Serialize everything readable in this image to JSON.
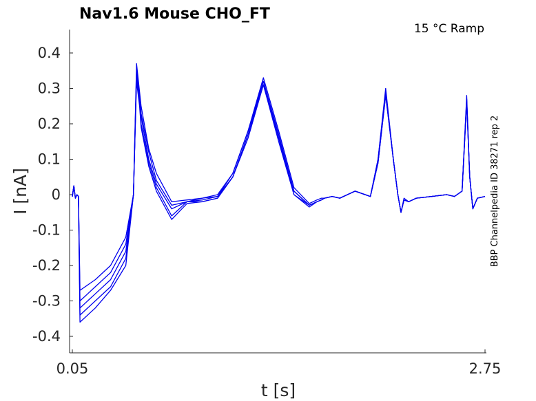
{
  "chart_data": {
    "type": "line",
    "title": "Nav1.6  Mouse  CHO_FT",
    "annotation": "15 °C  Ramp",
    "side_label": "BBP Channelpedia ID 38271 rep 2",
    "xlabel": "t [s]",
    "ylabel": "I [nA]",
    "xlim": [
      0.05,
      2.75
    ],
    "ylim": [
      -0.45,
      0.45
    ],
    "x_ticks": [
      "0.05",
      "2.75"
    ],
    "y_ticks": [
      "0.4",
      "0.3",
      "0.2",
      "0.1",
      "0",
      "-0.1",
      "-0.2",
      "-0.3",
      "-0.4"
    ],
    "y_tick_values": [
      0.4,
      0.3,
      0.2,
      0.1,
      0,
      -0.1,
      -0.2,
      -0.3,
      -0.4
    ],
    "grid": false,
    "line_color": "#0000ee",
    "series": [
      {
        "x": [
          0.05,
          0.06,
          0.07,
          0.08,
          0.09,
          0.1,
          0.2,
          0.3,
          0.4,
          0.45,
          0.47,
          0.49,
          0.5,
          0.55,
          0.6,
          0.7,
          0.8,
          0.9,
          1.0,
          1.1,
          1.2,
          1.3,
          1.4,
          1.5,
          1.6,
          1.65,
          1.68,
          1.7,
          1.75,
          1.8,
          1.9,
          2.0,
          2.05,
          2.1,
          2.15,
          2.18,
          2.2,
          2.22,
          2.25,
          2.3,
          2.4,
          2.5,
          2.55,
          2.6,
          2.63,
          2.65,
          2.67,
          2.7,
          2.75
        ],
        "y": [
          -0.005,
          0.025,
          -0.01,
          0.0,
          -0.005,
          -0.27,
          -0.24,
          -0.2,
          -0.12,
          0.0,
          0.37,
          0.29,
          0.25,
          0.13,
          0.06,
          -0.02,
          -0.015,
          -0.01,
          -0.0,
          0.06,
          0.18,
          0.33,
          0.18,
          0.02,
          -0.025,
          -0.015,
          -0.01,
          -0.01,
          -0.005,
          -0.01,
          0.01,
          -0.005,
          0.1,
          0.3,
          0.1,
          0.0,
          -0.05,
          -0.01,
          -0.02,
          -0.01,
          -0.005,
          0.0,
          -0.005,
          0.01,
          0.28,
          0.05,
          -0.04,
          -0.01,
          -0.005
        ]
      },
      {
        "x": [
          0.05,
          0.06,
          0.07,
          0.08,
          0.09,
          0.1,
          0.2,
          0.3,
          0.4,
          0.45,
          0.47,
          0.49,
          0.5,
          0.55,
          0.6,
          0.7,
          0.8,
          0.9,
          1.0,
          1.1,
          1.2,
          1.3,
          1.4,
          1.5,
          1.6,
          1.65,
          1.68,
          1.7,
          1.75,
          1.8,
          1.9,
          2.0,
          2.05,
          2.1,
          2.15,
          2.18,
          2.2,
          2.22,
          2.25,
          2.3,
          2.4,
          2.5,
          2.55,
          2.6,
          2.63,
          2.65,
          2.67,
          2.7,
          2.75
        ],
        "y": [
          -0.005,
          0.025,
          -0.01,
          0.0,
          -0.005,
          -0.3,
          -0.26,
          -0.22,
          -0.14,
          0.0,
          0.35,
          0.28,
          0.23,
          0.12,
          0.04,
          -0.03,
          -0.02,
          -0.01,
          -0.005,
          0.06,
          0.18,
          0.32,
          0.17,
          0.01,
          -0.03,
          -0.02,
          -0.015,
          -0.01,
          -0.005,
          -0.01,
          0.01,
          -0.005,
          0.1,
          0.29,
          0.1,
          0.0,
          -0.05,
          -0.015,
          -0.02,
          -0.01,
          -0.005,
          0.0,
          -0.005,
          0.01,
          0.27,
          0.05,
          -0.04,
          -0.01,
          -0.005
        ]
      },
      {
        "x": [
          0.05,
          0.06,
          0.07,
          0.08,
          0.09,
          0.1,
          0.2,
          0.3,
          0.4,
          0.45,
          0.47,
          0.49,
          0.5,
          0.55,
          0.6,
          0.7,
          0.8,
          0.9,
          1.0,
          1.1,
          1.2,
          1.3,
          1.4,
          1.5,
          1.6,
          1.65,
          1.68,
          1.7,
          1.75,
          1.8,
          1.9,
          2.0,
          2.05,
          2.1,
          2.15,
          2.18,
          2.2,
          2.22,
          2.25,
          2.3,
          2.4,
          2.5,
          2.55,
          2.6,
          2.63,
          2.65,
          2.67,
          2.7,
          2.75
        ],
        "y": [
          -0.005,
          0.025,
          -0.01,
          0.0,
          -0.005,
          -0.32,
          -0.28,
          -0.24,
          -0.16,
          0.0,
          0.34,
          0.27,
          0.22,
          0.1,
          0.03,
          -0.04,
          -0.02,
          -0.015,
          -0.005,
          0.05,
          0.17,
          0.32,
          0.16,
          0.01,
          -0.03,
          -0.02,
          -0.015,
          -0.01,
          -0.005,
          -0.01,
          0.01,
          -0.005,
          0.09,
          0.29,
          0.1,
          0.0,
          -0.05,
          -0.015,
          -0.02,
          -0.01,
          -0.005,
          0.0,
          -0.005,
          0.01,
          0.27,
          0.05,
          -0.04,
          -0.01,
          -0.005
        ]
      },
      {
        "x": [
          0.05,
          0.06,
          0.07,
          0.08,
          0.09,
          0.1,
          0.2,
          0.3,
          0.4,
          0.45,
          0.47,
          0.49,
          0.5,
          0.55,
          0.6,
          0.7,
          0.8,
          0.9,
          1.0,
          1.1,
          1.2,
          1.3,
          1.4,
          1.5,
          1.6,
          1.65,
          1.68,
          1.7,
          1.75,
          1.8,
          1.9,
          2.0,
          2.05,
          2.1,
          2.15,
          2.18,
          2.2,
          2.22,
          2.25,
          2.3,
          2.4,
          2.5,
          2.55,
          2.6,
          2.63,
          2.65,
          2.67,
          2.7,
          2.75
        ],
        "y": [
          -0.005,
          0.025,
          -0.01,
          0.0,
          -0.005,
          -0.34,
          -0.3,
          -0.26,
          -0.18,
          0.0,
          0.33,
          0.26,
          0.2,
          0.09,
          0.02,
          -0.06,
          -0.02,
          -0.02,
          -0.01,
          0.05,
          0.17,
          0.31,
          0.16,
          0.0,
          -0.03,
          -0.02,
          -0.015,
          -0.01,
          -0.005,
          -0.01,
          0.01,
          -0.005,
          0.09,
          0.28,
          0.1,
          0.0,
          -0.05,
          -0.015,
          -0.02,
          -0.01,
          -0.005,
          0.0,
          -0.005,
          0.01,
          0.26,
          0.05,
          -0.04,
          -0.01,
          -0.005
        ]
      },
      {
        "x": [
          0.05,
          0.06,
          0.07,
          0.08,
          0.09,
          0.1,
          0.2,
          0.3,
          0.4,
          0.45,
          0.47,
          0.49,
          0.5,
          0.55,
          0.6,
          0.7,
          0.8,
          0.9,
          1.0,
          1.1,
          1.2,
          1.3,
          1.4,
          1.5,
          1.6,
          1.65,
          1.68,
          1.7,
          1.75,
          1.8,
          1.9,
          2.0,
          2.05,
          2.1,
          2.15,
          2.18,
          2.2,
          2.22,
          2.25,
          2.3,
          2.4,
          2.5,
          2.55,
          2.6,
          2.63,
          2.65,
          2.67,
          2.7,
          2.75
        ],
        "y": [
          -0.005,
          0.025,
          -0.01,
          0.0,
          -0.005,
          -0.36,
          -0.32,
          -0.27,
          -0.2,
          0.0,
          0.32,
          0.25,
          0.19,
          0.08,
          0.01,
          -0.07,
          -0.025,
          -0.02,
          -0.01,
          0.05,
          0.16,
          0.31,
          0.15,
          0.0,
          -0.035,
          -0.02,
          -0.015,
          -0.01,
          -0.005,
          -0.01,
          0.01,
          -0.005,
          0.09,
          0.28,
          0.1,
          0.0,
          -0.05,
          -0.015,
          -0.02,
          -0.01,
          -0.005,
          0.0,
          -0.005,
          0.01,
          0.26,
          0.05,
          -0.04,
          -0.01,
          -0.005
        ]
      }
    ]
  }
}
